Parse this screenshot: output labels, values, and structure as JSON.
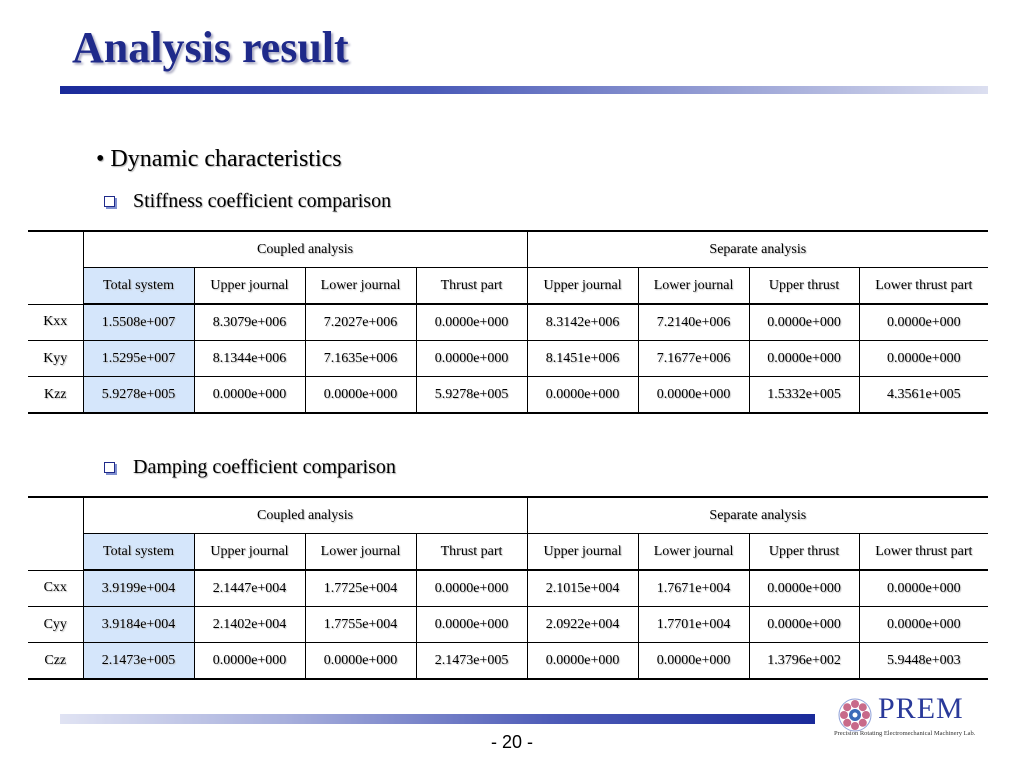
{
  "slide": {
    "title": "Analysis result",
    "heading": "• Dynamic characteristics",
    "page_number": "- 20 -"
  },
  "stiffness": {
    "caption": "Stiffness coefficient comparison",
    "group_coupled": "Coupled analysis",
    "group_separate": "Separate analysis",
    "columns": [
      "Total system",
      "Upper journal",
      "Lower journal",
      "Thrust part",
      "Upper journal",
      "Lower journal",
      "Upper thrust",
      "Lower thrust part"
    ],
    "rows": [
      {
        "label": "Kxx",
        "cells": [
          "1.5508e+007",
          "8.3079e+006",
          "7.2027e+006",
          "0.0000e+000",
          "8.3142e+006",
          "7.2140e+006",
          "0.0000e+000",
          "0.0000e+000"
        ]
      },
      {
        "label": "Kyy",
        "cells": [
          "1.5295e+007",
          "8.1344e+006",
          "7.1635e+006",
          "0.0000e+000",
          "8.1451e+006",
          "7.1677e+006",
          "0.0000e+000",
          "0.0000e+000"
        ]
      },
      {
        "label": "Kzz",
        "cells": [
          "5.9278e+005",
          "0.0000e+000",
          "0.0000e+000",
          "5.9278e+005",
          "0.0000e+000",
          "0.0000e+000",
          "1.5332e+005",
          "4.3561e+005"
        ]
      }
    ]
  },
  "damping": {
    "caption": "Damping coefficient comparison",
    "group_coupled": "Coupled analysis",
    "group_separate": "Separate analysis",
    "columns": [
      "Total system",
      "Upper journal",
      "Lower journal",
      "Thrust part",
      "Upper journal",
      "Lower journal",
      "Upper thrust",
      "Lower thrust part"
    ],
    "rows": [
      {
        "label": "Cxx",
        "cells": [
          "3.9199e+004",
          "2.1447e+004",
          "1.7725e+004",
          "0.0000e+000",
          "2.1015e+004",
          "1.7671e+004",
          "0.0000e+000",
          "0.0000e+000"
        ]
      },
      {
        "label": "Cyy",
        "cells": [
          "3.9184e+004",
          "2.1402e+004",
          "1.7755e+004",
          "0.0000e+000",
          "2.0922e+004",
          "1.7701e+004",
          "0.0000e+000",
          "0.0000e+000"
        ]
      },
      {
        "label": "Czz",
        "cells": [
          "2.1473e+005",
          "0.0000e+000",
          "0.0000e+000",
          "2.1473e+005",
          "0.0000e+000",
          "0.0000e+000",
          "1.3796e+002",
          "5.9448e+003"
        ]
      }
    ]
  },
  "logo": {
    "name": "PREM",
    "tagline": "Precision Rotating Electromechanical Machinery Lab.",
    "icon": "gear-flower-icon"
  },
  "colors": {
    "title": "#1f2a8a",
    "highlight_cell": "#d5e6fb",
    "bar_dark": "#1a2a9a"
  }
}
